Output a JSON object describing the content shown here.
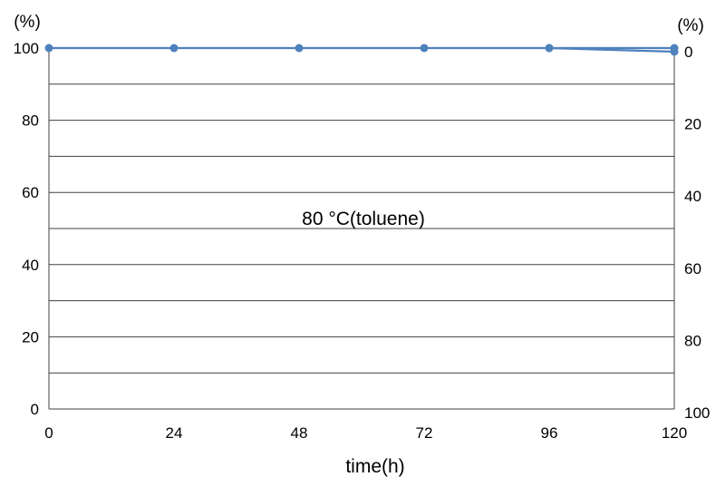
{
  "chart_data": {
    "type": "line",
    "title": "",
    "annotation": "80 °C(toluene)",
    "xlabel": "time(h)",
    "ylabel_left_unit": "(%)",
    "ylabel_right_unit": "(%)",
    "xlim": [
      0,
      120
    ],
    "ylim": [
      0,
      100
    ],
    "y2lim_reversed": [
      0,
      100
    ],
    "x_ticks": [
      0,
      24,
      48,
      72,
      96,
      120
    ],
    "y_ticks_left": [
      0,
      20,
      40,
      60,
      80,
      100
    ],
    "y_ticks_right": [
      0,
      20,
      40,
      60,
      80,
      100
    ],
    "grid": "horizontal",
    "colors": {
      "series": "#4f81bd",
      "grid": "#404040"
    },
    "series": [
      {
        "x": [
          0,
          24,
          48,
          72,
          96,
          120
        ],
        "values": [
          100,
          100,
          100,
          100,
          100,
          99
        ],
        "axis": "left"
      },
      {
        "x": [
          96,
          120
        ],
        "values": [
          0,
          0
        ],
        "axis": "right"
      }
    ]
  }
}
